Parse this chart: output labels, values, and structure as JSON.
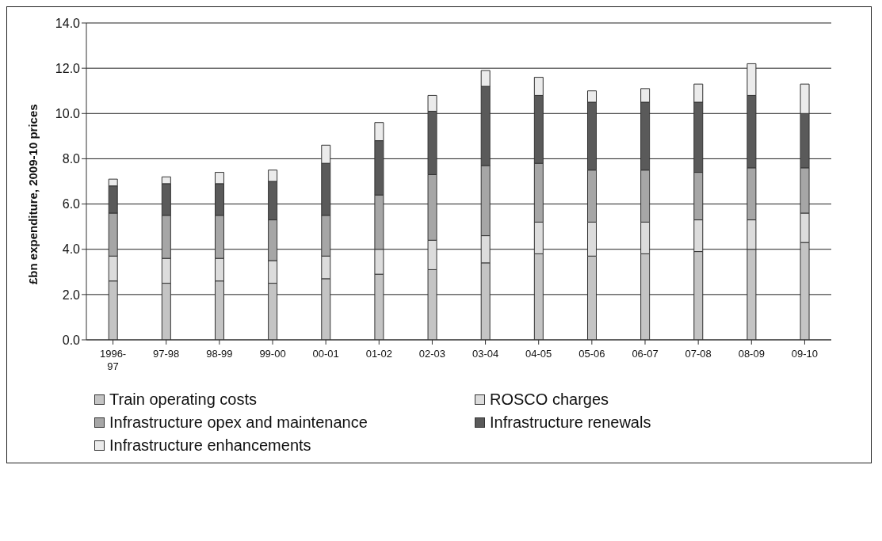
{
  "chart_data": {
    "type": "bar",
    "stacked": true,
    "ylabel": "£bn expenditure, 2009-10 prices",
    "categories": [
      "1996-97",
      "97-98",
      "98-99",
      "99-00",
      "00-01",
      "01-02",
      "02-03",
      "03-04",
      "04-05",
      "05-06",
      "06-07",
      "07-08",
      "08-09",
      "09-10"
    ],
    "series": [
      {
        "name": "Train operating costs",
        "color": "#c4c4c4",
        "values": [
          2.6,
          2.5,
          2.6,
          2.5,
          2.7,
          2.9,
          3.1,
          3.4,
          3.8,
          3.7,
          3.8,
          3.9,
          4.0,
          4.3
        ]
      },
      {
        "name": "ROSCO charges",
        "color": "#dcdcdc",
        "values": [
          1.1,
          1.1,
          1.0,
          1.0,
          1.0,
          1.1,
          1.3,
          1.2,
          1.4,
          1.5,
          1.4,
          1.4,
          1.3,
          1.3
        ]
      },
      {
        "name": "Infrastructure opex and maintenance",
        "color": "#a6a6a6",
        "values": [
          1.9,
          1.9,
          1.9,
          1.8,
          1.8,
          2.4,
          2.9,
          3.1,
          2.6,
          2.3,
          2.3,
          2.1,
          2.3,
          2.0
        ]
      },
      {
        "name": "Infrastructure renewals",
        "color": "#5a5a5a",
        "values": [
          1.2,
          1.4,
          1.4,
          1.7,
          2.3,
          2.4,
          2.8,
          3.5,
          3.0,
          3.0,
          3.0,
          3.1,
          3.2,
          2.4
        ]
      },
      {
        "name": "Infrastructure enhancements",
        "color": "#ebebeb",
        "values": [
          0.3,
          0.3,
          0.5,
          0.5,
          0.8,
          0.8,
          0.7,
          0.7,
          0.8,
          0.5,
          0.6,
          0.8,
          1.4,
          1.3
        ]
      }
    ],
    "ylim": [
      0,
      14
    ],
    "yticks": [
      {
        "value": 0,
        "label": "0.0"
      },
      {
        "value": 2,
        "label": "2.0"
      },
      {
        "value": 4,
        "label": "4.0"
      },
      {
        "value": 6,
        "label": "6.0"
      },
      {
        "value": 8,
        "label": "8.0"
      },
      {
        "value": 10,
        "label": "10.0"
      },
      {
        "value": 12,
        "label": "12.0"
      },
      {
        "value": 14,
        "label": "14.0"
      }
    ],
    "grid": "y",
    "legend": "bottom"
  }
}
